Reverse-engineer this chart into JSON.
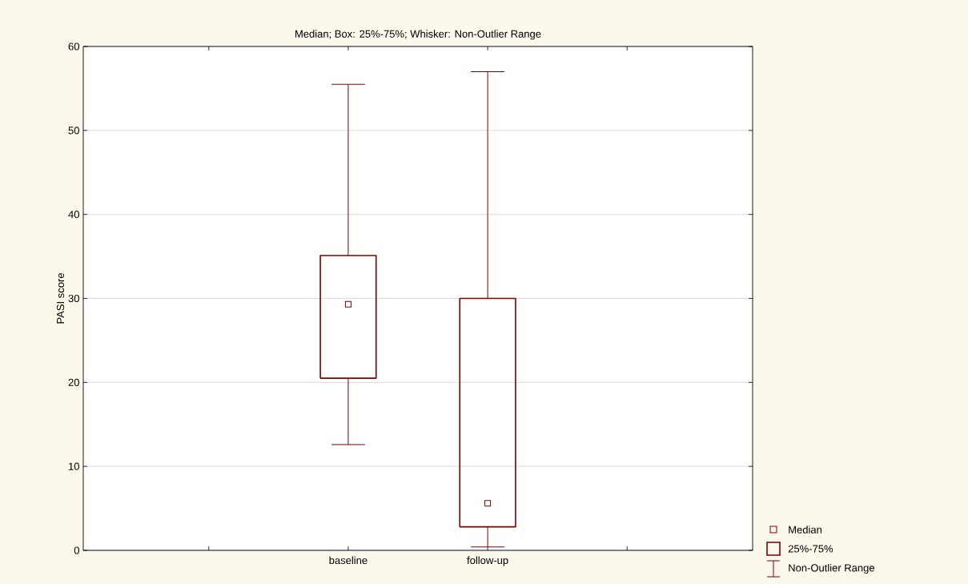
{
  "chart_data": {
    "type": "box",
    "title": "Median; Box: 25%-75%; Whisker: Non-Outlier Range",
    "ylabel": "PASI score",
    "categories": [
      "baseline",
      "follow-up"
    ],
    "boxes": [
      {
        "low": 12.6,
        "q1": 20.5,
        "median": 29.3,
        "q3": 35.1,
        "high": 55.5
      },
      {
        "low": 0.4,
        "q1": 2.8,
        "median": 5.6,
        "q3": 30.0,
        "high": 57.0
      }
    ],
    "color": "#7f0000",
    "marker": "square",
    "ylim": [
      0,
      60
    ],
    "yticks": [
      0,
      10,
      20,
      30,
      40,
      50,
      60
    ],
    "grid": "y",
    "annotations": [
      "Median",
      "25%-75%",
      "Non-Outlier Range"
    ]
  }
}
